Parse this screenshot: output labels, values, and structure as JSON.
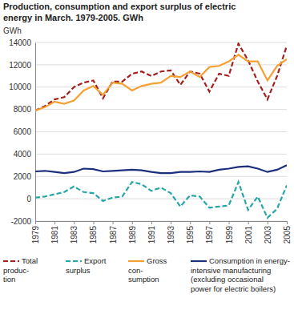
{
  "chart_data": {
    "type": "line",
    "title": "Production, consumption and export surplus of electric\nenergy in March. 1979-2005. GWh",
    "y_label": "GWh",
    "x": [
      1979,
      1980,
      1981,
      1982,
      1983,
      1984,
      1985,
      1986,
      1987,
      1988,
      1989,
      1990,
      1991,
      1992,
      1993,
      1994,
      1995,
      1996,
      1997,
      1998,
      1999,
      2000,
      2001,
      2002,
      2003,
      2004,
      2005
    ],
    "xlim": [
      1979,
      2005
    ],
    "xticks": [
      1979,
      1981,
      1983,
      1985,
      1987,
      1989,
      1991,
      1993,
      1995,
      1997,
      1999,
      2001,
      2003,
      2005
    ],
    "ylim": [
      -2000,
      14000
    ],
    "yticks": [
      -2000,
      0,
      2000,
      4000,
      6000,
      8000,
      10000,
      12000,
      14000
    ],
    "grid": true,
    "legend": "bottom",
    "series": [
      {
        "name": "Total\nproduc-\ntion",
        "color": "#a3201f",
        "line_style": "dashed",
        "values": [
          7900,
          8300,
          8900,
          9100,
          10000,
          10400,
          10600,
          9000,
          10500,
          10500,
          11200,
          11400,
          11000,
          11400,
          11500,
          10200,
          11400,
          11200,
          9600,
          11200,
          11000,
          13900,
          12400,
          10500,
          8900,
          11000,
          13700
        ]
      },
      {
        "name": "Export\nsurplus",
        "color": "#26a6a6",
        "line_style": "dashed",
        "values": [
          100,
          200,
          400,
          600,
          1100,
          600,
          500,
          -200,
          100,
          200,
          1500,
          1300,
          700,
          1000,
          500,
          -700,
          300,
          200,
          -800,
          -700,
          -600,
          1500,
          -1000,
          200,
          -1700,
          -900,
          1200
        ]
      },
      {
        "name": "Gross\ncon-\nsumption",
        "color": "#f5a033",
        "line_style": "solid",
        "values": [
          7900,
          8200,
          8700,
          8500,
          8800,
          9700,
          10100,
          9300,
          10400,
          10300,
          9700,
          10100,
          10300,
          10400,
          11000,
          10900,
          11400,
          10900,
          11800,
          11900,
          12300,
          12900,
          12300,
          12300,
          10600,
          11900,
          12500
        ]
      },
      {
        "name": "Consumption in energy-\nintensive manufacturing\n(excluding occasional\npower for electric boilers)",
        "color": "#1b2f7d",
        "line_style": "solid",
        "values": [
          2450,
          2500,
          2400,
          2300,
          2400,
          2700,
          2650,
          2450,
          2500,
          2550,
          2600,
          2550,
          2400,
          2300,
          2300,
          2400,
          2400,
          2450,
          2400,
          2600,
          2700,
          2850,
          2900,
          2700,
          2400,
          2600,
          3000
        ]
      }
    ]
  }
}
